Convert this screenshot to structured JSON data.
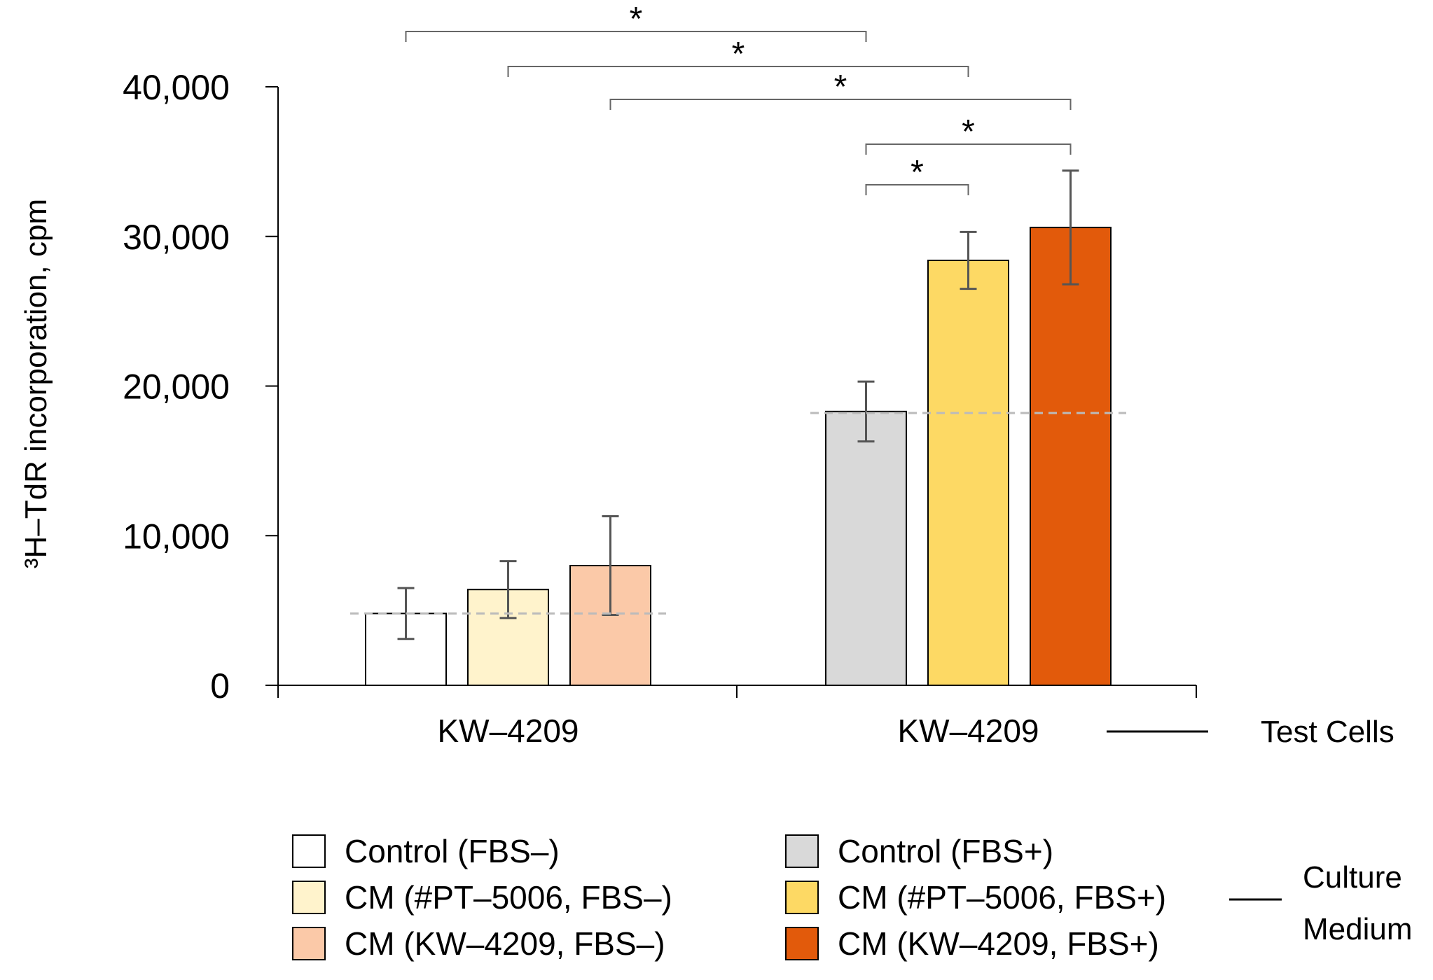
{
  "chart_data": {
    "type": "bar",
    "title": "",
    "ylabel": "³H–TdR incorporation, cpm",
    "ylim": [
      0,
      40000
    ],
    "yticks": [
      0,
      10000,
      20000,
      30000,
      40000
    ],
    "ytick_labels": [
      "0",
      "10,000",
      "20,000",
      "30,000",
      "40,000"
    ],
    "groups": [
      {
        "label": "KW–4209",
        "baseline": 4800,
        "bars": [
          {
            "series": "Control (FBS–)",
            "value": 4800,
            "error": 1700
          },
          {
            "series": "CM (#PT–5006, FBS–)",
            "value": 6400,
            "error": 1900
          },
          {
            "series": "CM (KW–4209, FBS–)",
            "value": 8000,
            "error": 3300
          }
        ]
      },
      {
        "label": "KW–4209",
        "baseline": 18200,
        "bars": [
          {
            "series": "Control (FBS+)",
            "value": 18300,
            "error": 2000
          },
          {
            "series": "CM (#PT–5006, FBS+)",
            "value": 28400,
            "error": 1900
          },
          {
            "series": "CM (KW–4209, FBS+)",
            "value": 30600,
            "error": 3800
          }
        ]
      }
    ],
    "series": [
      {
        "name": "Control (FBS–)",
        "color": "#ffffff"
      },
      {
        "name": "CM (#PT–5006, FBS–)",
        "color": "#fff3cc"
      },
      {
        "name": "CM (KW–4209, FBS–)",
        "color": "#fbc9a8"
      },
      {
        "name": "Control (FBS+)",
        "color": "#d9d9d9"
      },
      {
        "name": "CM (#PT–5006, FBS+)",
        "color": "#fdd964"
      },
      {
        "name": "CM (KW–4209, FBS+)",
        "color": "#e25a0b"
      }
    ],
    "significance": [
      {
        "from": 0,
        "to": 3,
        "label": "*"
      },
      {
        "from": 1,
        "to": 4,
        "label": "*"
      },
      {
        "from": 2,
        "to": 5,
        "label": "*"
      },
      {
        "from": 3,
        "to": 5,
        "label": "*"
      },
      {
        "from": 3,
        "to": 4,
        "label": "*"
      }
    ],
    "test_cells_label": "Test Cells",
    "culture_medium_label": [
      "Culture",
      "Medium"
    ]
  }
}
